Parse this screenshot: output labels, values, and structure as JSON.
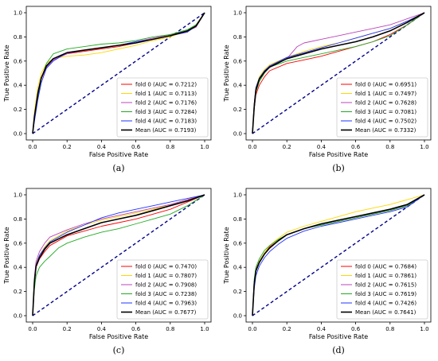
{
  "chart_data": [
    {
      "type": "line",
      "caption": "(a)",
      "xlabel": "False Positive Rate",
      "ylabel": "True Positive Rate",
      "xlim": [
        0.0,
        1.0
      ],
      "ylim": [
        0.0,
        1.0
      ],
      "xticks": [
        "0.0",
        "0.2",
        "0.4",
        "0.6",
        "0.8",
        "1.0"
      ],
      "yticks": [
        "0.0",
        "0.2",
        "0.4",
        "0.6",
        "0.8",
        "1.0"
      ],
      "grid": false,
      "legend_position": "lower-right",
      "series": [
        {
          "name": "fold 0 (AUC = 0.7212)",
          "color": "#ff0000",
          "x": [
            0,
            0.01,
            0.03,
            0.05,
            0.08,
            0.12,
            0.2,
            0.3,
            0.4,
            0.5,
            0.6,
            0.7,
            0.8,
            0.9,
            0.95,
            1.0
          ],
          "y": [
            0,
            0.15,
            0.35,
            0.45,
            0.55,
            0.62,
            0.66,
            0.68,
            0.7,
            0.72,
            0.75,
            0.78,
            0.81,
            0.84,
            0.9,
            1.0
          ]
        },
        {
          "name": "fold 1 (AUC = 0.7113)",
          "color": "#ffd700",
          "x": [
            0,
            0.01,
            0.03,
            0.05,
            0.08,
            0.12,
            0.2,
            0.3,
            0.4,
            0.5,
            0.6,
            0.7,
            0.8,
            0.9,
            0.95,
            1.0
          ],
          "y": [
            0,
            0.18,
            0.38,
            0.5,
            0.58,
            0.62,
            0.64,
            0.65,
            0.67,
            0.7,
            0.73,
            0.77,
            0.8,
            0.85,
            0.9,
            1.0
          ]
        },
        {
          "name": "fold 2 (AUC = 0.7176)",
          "color": "#bb44bb",
          "x": [
            0,
            0.01,
            0.03,
            0.05,
            0.08,
            0.12,
            0.2,
            0.3,
            0.4,
            0.5,
            0.6,
            0.7,
            0.8,
            0.9,
            0.95,
            1.0
          ],
          "y": [
            0,
            0.14,
            0.33,
            0.46,
            0.55,
            0.61,
            0.66,
            0.69,
            0.71,
            0.73,
            0.76,
            0.79,
            0.82,
            0.85,
            0.88,
            1.0
          ]
        },
        {
          "name": "fold 3 (AUC = 0.7284)",
          "color": "#22aa22",
          "x": [
            0,
            0.01,
            0.03,
            0.05,
            0.08,
            0.12,
            0.2,
            0.3,
            0.4,
            0.5,
            0.6,
            0.7,
            0.8,
            0.9,
            0.95,
            1.0
          ],
          "y": [
            0,
            0.12,
            0.3,
            0.45,
            0.58,
            0.66,
            0.7,
            0.72,
            0.74,
            0.75,
            0.77,
            0.8,
            0.82,
            0.86,
            0.9,
            1.0
          ]
        },
        {
          "name": "fold 4 (AUC = 0.7183)",
          "color": "#2233ff",
          "x": [
            0,
            0.01,
            0.03,
            0.05,
            0.08,
            0.12,
            0.2,
            0.3,
            0.4,
            0.5,
            0.6,
            0.7,
            0.8,
            0.9,
            0.95,
            1.0
          ],
          "y": [
            0,
            0.1,
            0.28,
            0.42,
            0.54,
            0.6,
            0.67,
            0.69,
            0.71,
            0.73,
            0.76,
            0.78,
            0.81,
            0.84,
            0.89,
            1.0
          ]
        },
        {
          "name": "Mean (AUC = 0.7193)",
          "color": "#000000",
          "bold": true,
          "x": [
            0,
            0.01,
            0.03,
            0.05,
            0.08,
            0.12,
            0.2,
            0.3,
            0.4,
            0.5,
            0.6,
            0.7,
            0.8,
            0.9,
            0.95,
            1.0
          ],
          "y": [
            0,
            0.14,
            0.33,
            0.46,
            0.56,
            0.62,
            0.67,
            0.69,
            0.71,
            0.73,
            0.75,
            0.78,
            0.81,
            0.85,
            0.89,
            1.0
          ]
        }
      ]
    },
    {
      "type": "line",
      "caption": "(b)",
      "xlabel": "False Positive Rate",
      "ylabel": "True Positive Rate",
      "xlim": [
        0.0,
        1.0
      ],
      "ylim": [
        0.0,
        1.0
      ],
      "xticks": [
        "0.0",
        "0.2",
        "0.4",
        "0.6",
        "0.8",
        "1.0"
      ],
      "yticks": [
        "0.0",
        "0.2",
        "0.4",
        "0.6",
        "0.8",
        "1.0"
      ],
      "grid": false,
      "legend_position": "lower-right",
      "series": [
        {
          "name": "fold 0 (AUC = 0.6951)",
          "color": "#ff0000",
          "x": [
            0,
            0.01,
            0.02,
            0.04,
            0.07,
            0.1,
            0.2,
            0.3,
            0.4,
            0.5,
            0.6,
            0.7,
            0.8,
            0.9,
            1.0
          ],
          "y": [
            0,
            0.2,
            0.32,
            0.4,
            0.47,
            0.52,
            0.58,
            0.61,
            0.64,
            0.68,
            0.72,
            0.76,
            0.82,
            0.9,
            1.0
          ]
        },
        {
          "name": "fold 1 (AUC = 0.7497)",
          "color": "#ffd700",
          "x": [
            0,
            0.01,
            0.02,
            0.04,
            0.07,
            0.1,
            0.2,
            0.3,
            0.4,
            0.5,
            0.6,
            0.7,
            0.8,
            0.9,
            1.0
          ],
          "y": [
            0,
            0.24,
            0.38,
            0.47,
            0.53,
            0.57,
            0.63,
            0.68,
            0.72,
            0.75,
            0.79,
            0.83,
            0.87,
            0.93,
            1.0
          ]
        },
        {
          "name": "fold 2 (AUC = 0.7628)",
          "color": "#bb44bb",
          "x": [
            0,
            0.01,
            0.02,
            0.04,
            0.07,
            0.1,
            0.2,
            0.26,
            0.3,
            0.4,
            0.5,
            0.6,
            0.7,
            0.8,
            0.9,
            1.0
          ],
          "y": [
            0,
            0.22,
            0.36,
            0.45,
            0.51,
            0.56,
            0.62,
            0.72,
            0.75,
            0.78,
            0.81,
            0.84,
            0.87,
            0.9,
            0.95,
            1.0
          ]
        },
        {
          "name": "fold 3 (AUC = 0.7081)",
          "color": "#22aa22",
          "x": [
            0,
            0.01,
            0.02,
            0.04,
            0.07,
            0.1,
            0.2,
            0.3,
            0.4,
            0.5,
            0.6,
            0.7,
            0.8,
            0.9,
            1.0
          ],
          "y": [
            0,
            0.2,
            0.34,
            0.43,
            0.5,
            0.55,
            0.6,
            0.63,
            0.66,
            0.69,
            0.72,
            0.76,
            0.81,
            0.9,
            1.0
          ]
        },
        {
          "name": "fold 4 (AUC = 0.7502)",
          "color": "#2233ff",
          "x": [
            0,
            0.01,
            0.02,
            0.04,
            0.07,
            0.1,
            0.2,
            0.3,
            0.4,
            0.5,
            0.6,
            0.7,
            0.8,
            0.9,
            1.0
          ],
          "y": [
            0,
            0.25,
            0.38,
            0.46,
            0.52,
            0.56,
            0.63,
            0.67,
            0.71,
            0.75,
            0.79,
            0.83,
            0.87,
            0.93,
            1.0
          ]
        },
        {
          "name": "Mean (AUC = 0.7332)",
          "color": "#000000",
          "bold": true,
          "x": [
            0,
            0.01,
            0.02,
            0.04,
            0.07,
            0.1,
            0.2,
            0.3,
            0.4,
            0.5,
            0.6,
            0.7,
            0.8,
            0.9,
            1.0
          ],
          "y": [
            0,
            0.22,
            0.36,
            0.45,
            0.51,
            0.55,
            0.62,
            0.66,
            0.7,
            0.73,
            0.76,
            0.8,
            0.85,
            0.92,
            1.0
          ]
        }
      ]
    },
    {
      "type": "line",
      "caption": "(c)",
      "xlabel": "False Positive Rate",
      "ylabel": "True Positive Rate",
      "xlim": [
        0.0,
        1.0
      ],
      "ylim": [
        0.0,
        1.0
      ],
      "xticks": [
        "0.0",
        "0.2",
        "0.4",
        "0.6",
        "0.8",
        "1.0"
      ],
      "yticks": [
        "0.0",
        "0.2",
        "0.4",
        "0.6",
        "0.8",
        "1.0"
      ],
      "grid": false,
      "legend_position": "lower-right",
      "series": [
        {
          "name": "fold 0 (AUC = 0.7470)",
          "color": "#ff0000",
          "x": [
            0,
            0.01,
            0.02,
            0.04,
            0.07,
            0.1,
            0.2,
            0.3,
            0.4,
            0.5,
            0.6,
            0.7,
            0.8,
            0.9,
            1.0
          ],
          "y": [
            0,
            0.28,
            0.4,
            0.47,
            0.53,
            0.58,
            0.66,
            0.7,
            0.74,
            0.77,
            0.8,
            0.84,
            0.88,
            0.94,
            1.0
          ]
        },
        {
          "name": "fold 1 (AUC = 0.7807)",
          "color": "#ffd700",
          "x": [
            0,
            0.01,
            0.02,
            0.04,
            0.07,
            0.1,
            0.2,
            0.3,
            0.4,
            0.5,
            0.6,
            0.7,
            0.8,
            0.9,
            1.0
          ],
          "y": [
            0,
            0.3,
            0.43,
            0.5,
            0.57,
            0.62,
            0.7,
            0.75,
            0.79,
            0.82,
            0.85,
            0.88,
            0.92,
            0.96,
            1.0
          ]
        },
        {
          "name": "fold 2 (AUC = 0.7908)",
          "color": "#bb44bb",
          "x": [
            0,
            0.01,
            0.02,
            0.04,
            0.07,
            0.1,
            0.2,
            0.3,
            0.4,
            0.5,
            0.6,
            0.7,
            0.8,
            0.9,
            1.0
          ],
          "y": [
            0,
            0.32,
            0.45,
            0.53,
            0.6,
            0.65,
            0.71,
            0.76,
            0.8,
            0.83,
            0.86,
            0.89,
            0.92,
            0.96,
            1.0
          ]
        },
        {
          "name": "fold 3 (AUC = 0.7238)",
          "color": "#22aa22",
          "x": [
            0,
            0.01,
            0.02,
            0.04,
            0.07,
            0.1,
            0.15,
            0.2,
            0.3,
            0.4,
            0.5,
            0.6,
            0.7,
            0.8,
            0.9,
            1.0
          ],
          "y": [
            0,
            0.22,
            0.33,
            0.4,
            0.45,
            0.49,
            0.56,
            0.6,
            0.65,
            0.69,
            0.72,
            0.76,
            0.8,
            0.84,
            0.91,
            1.0
          ]
        },
        {
          "name": "fold 4 (AUC = 0.7963)",
          "color": "#2233ff",
          "x": [
            0,
            0.01,
            0.02,
            0.04,
            0.07,
            0.1,
            0.2,
            0.3,
            0.4,
            0.5,
            0.6,
            0.7,
            0.8,
            0.9,
            1.0
          ],
          "y": [
            0,
            0.29,
            0.42,
            0.5,
            0.56,
            0.61,
            0.69,
            0.75,
            0.81,
            0.85,
            0.88,
            0.91,
            0.94,
            0.97,
            1.0
          ]
        },
        {
          "name": "Mean (AUC = 0.7677)",
          "color": "#000000",
          "bold": true,
          "x": [
            0,
            0.01,
            0.02,
            0.04,
            0.07,
            0.1,
            0.2,
            0.3,
            0.4,
            0.5,
            0.6,
            0.7,
            0.8,
            0.9,
            1.0
          ],
          "y": [
            0,
            0.28,
            0.41,
            0.48,
            0.55,
            0.6,
            0.67,
            0.72,
            0.77,
            0.8,
            0.83,
            0.87,
            0.91,
            0.95,
            1.0
          ]
        }
      ]
    },
    {
      "type": "line",
      "caption": "(d)",
      "xlabel": "False Positive Rate",
      "ylabel": "True Positive Rate",
      "xlim": [
        0.0,
        1.0
      ],
      "ylim": [
        0.0,
        1.0
      ],
      "xticks": [
        "0.0",
        "0.2",
        "0.4",
        "0.6",
        "0.8",
        "1.0"
      ],
      "yticks": [
        "0.0",
        "0.2",
        "0.4",
        "0.6",
        "0.8",
        "1.0"
      ],
      "grid": false,
      "legend_position": "lower-right",
      "series": [
        {
          "name": "fold 0 (AUC = 0.7684)",
          "color": "#ff0000",
          "x": [
            0,
            0.01,
            0.02,
            0.04,
            0.07,
            0.1,
            0.15,
            0.2,
            0.3,
            0.4,
            0.5,
            0.6,
            0.7,
            0.8,
            0.9,
            1.0
          ],
          "y": [
            0,
            0.28,
            0.38,
            0.45,
            0.52,
            0.57,
            0.62,
            0.67,
            0.72,
            0.76,
            0.79,
            0.82,
            0.85,
            0.88,
            0.92,
            1.0
          ]
        },
        {
          "name": "fold 1 (AUC = 0.7861)",
          "color": "#ffd700",
          "x": [
            0,
            0.01,
            0.02,
            0.04,
            0.07,
            0.1,
            0.15,
            0.2,
            0.3,
            0.4,
            0.5,
            0.6,
            0.7,
            0.8,
            0.9,
            1.0
          ],
          "y": [
            0,
            0.25,
            0.37,
            0.45,
            0.52,
            0.58,
            0.64,
            0.69,
            0.74,
            0.78,
            0.82,
            0.86,
            0.89,
            0.92,
            0.96,
            1.0
          ]
        },
        {
          "name": "fold 2 (AUC = 0.7615)",
          "color": "#bb44bb",
          "x": [
            0,
            0.01,
            0.02,
            0.04,
            0.07,
            0.1,
            0.15,
            0.2,
            0.3,
            0.4,
            0.5,
            0.6,
            0.7,
            0.8,
            0.9,
            1.0
          ],
          "y": [
            0,
            0.26,
            0.37,
            0.44,
            0.51,
            0.56,
            0.62,
            0.67,
            0.72,
            0.75,
            0.78,
            0.81,
            0.84,
            0.87,
            0.91,
            1.0
          ]
        },
        {
          "name": "fold 3 (AUC = 0.7619)",
          "color": "#22aa22",
          "x": [
            0,
            0.01,
            0.02,
            0.04,
            0.07,
            0.1,
            0.15,
            0.2,
            0.3,
            0.4,
            0.5,
            0.6,
            0.7,
            0.8,
            0.9,
            1.0
          ],
          "y": [
            0,
            0.3,
            0.4,
            0.47,
            0.54,
            0.58,
            0.63,
            0.67,
            0.72,
            0.75,
            0.78,
            0.81,
            0.84,
            0.87,
            0.91,
            1.0
          ]
        },
        {
          "name": "fold 4 (AUC = 0.7426)",
          "color": "#2233ff",
          "x": [
            0,
            0.01,
            0.02,
            0.04,
            0.07,
            0.1,
            0.15,
            0.2,
            0.3,
            0.4,
            0.5,
            0.6,
            0.7,
            0.8,
            0.9,
            1.0
          ],
          "y": [
            0,
            0.22,
            0.33,
            0.41,
            0.48,
            0.53,
            0.59,
            0.64,
            0.7,
            0.74,
            0.77,
            0.8,
            0.83,
            0.86,
            0.9,
            1.0
          ]
        },
        {
          "name": "Mean (AUC = 0.7641)",
          "color": "#000000",
          "bold": true,
          "x": [
            0,
            0.01,
            0.02,
            0.04,
            0.07,
            0.1,
            0.15,
            0.2,
            0.3,
            0.4,
            0.5,
            0.6,
            0.7,
            0.8,
            0.9,
            1.0
          ],
          "y": [
            0,
            0.26,
            0.37,
            0.44,
            0.51,
            0.56,
            0.62,
            0.67,
            0.72,
            0.76,
            0.79,
            0.82,
            0.85,
            0.88,
            0.92,
            1.0
          ]
        }
      ]
    }
  ],
  "diagonal": {
    "color": "#00008b"
  }
}
